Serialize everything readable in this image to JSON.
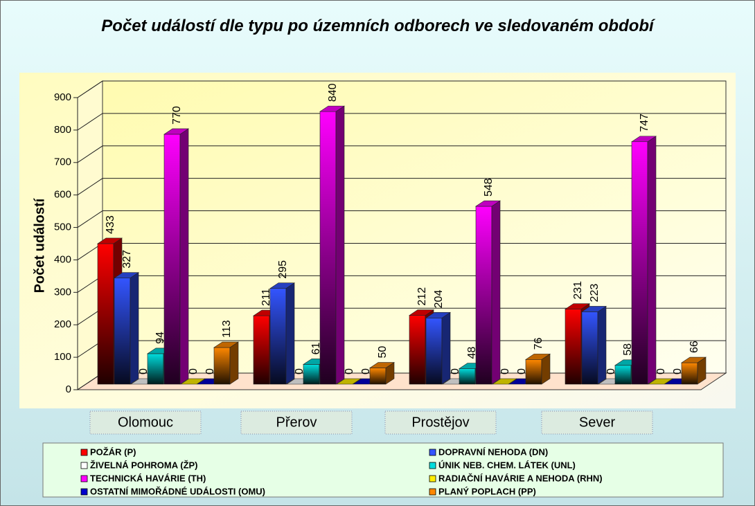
{
  "chart_data": {
    "type": "bar3d",
    "title": "Počet událostí dle typu po územních odborech ve sledovaném období",
    "ylabel": "Počet událostí",
    "categories": [
      "Olomouc",
      "Přerov",
      "Prostějov",
      "Sever"
    ],
    "ylim": [
      0,
      900
    ],
    "yticks": [
      0,
      100,
      200,
      300,
      400,
      500,
      600,
      700,
      800,
      900
    ],
    "grid": true,
    "series": [
      {
        "name": "POŽÁR (P)",
        "color": "#ff0000",
        "values": [
          433,
          211,
          212,
          231
        ]
      },
      {
        "name": "DOPRAVNÍ NEHODA (DN)",
        "color": "#3355ff",
        "values": [
          327,
          295,
          204,
          223
        ]
      },
      {
        "name": "ŽIVELNÁ POHROMA (ŽP)",
        "color": "#ffffff",
        "values": [
          0,
          0,
          0,
          0
        ]
      },
      {
        "name": "ÚNIK  NEB. CHEM. LÁTEK (UNL)",
        "color": "#00dddd",
        "values": [
          94,
          61,
          48,
          58
        ]
      },
      {
        "name": "TECHNICKÁ HAVÁRIE (TH)",
        "color": "#ff00ff",
        "values": [
          770,
          840,
          548,
          747
        ]
      },
      {
        "name": "RADIAČNÍ HAVÁRIE A NEHODA (RHN)",
        "color": "#ffee00",
        "values": [
          0,
          0,
          0,
          0
        ]
      },
      {
        "name": "OSTATNÍ MIMOŘÁDNÉ UDÁLOSTI (OMU)",
        "color": "#0000cc",
        "values": [
          0,
          0,
          0,
          0
        ]
      },
      {
        "name": "PLANÝ POPLACH (PP)",
        "color": "#ff8800",
        "values": [
          113,
          50,
          76,
          66
        ]
      }
    ]
  }
}
